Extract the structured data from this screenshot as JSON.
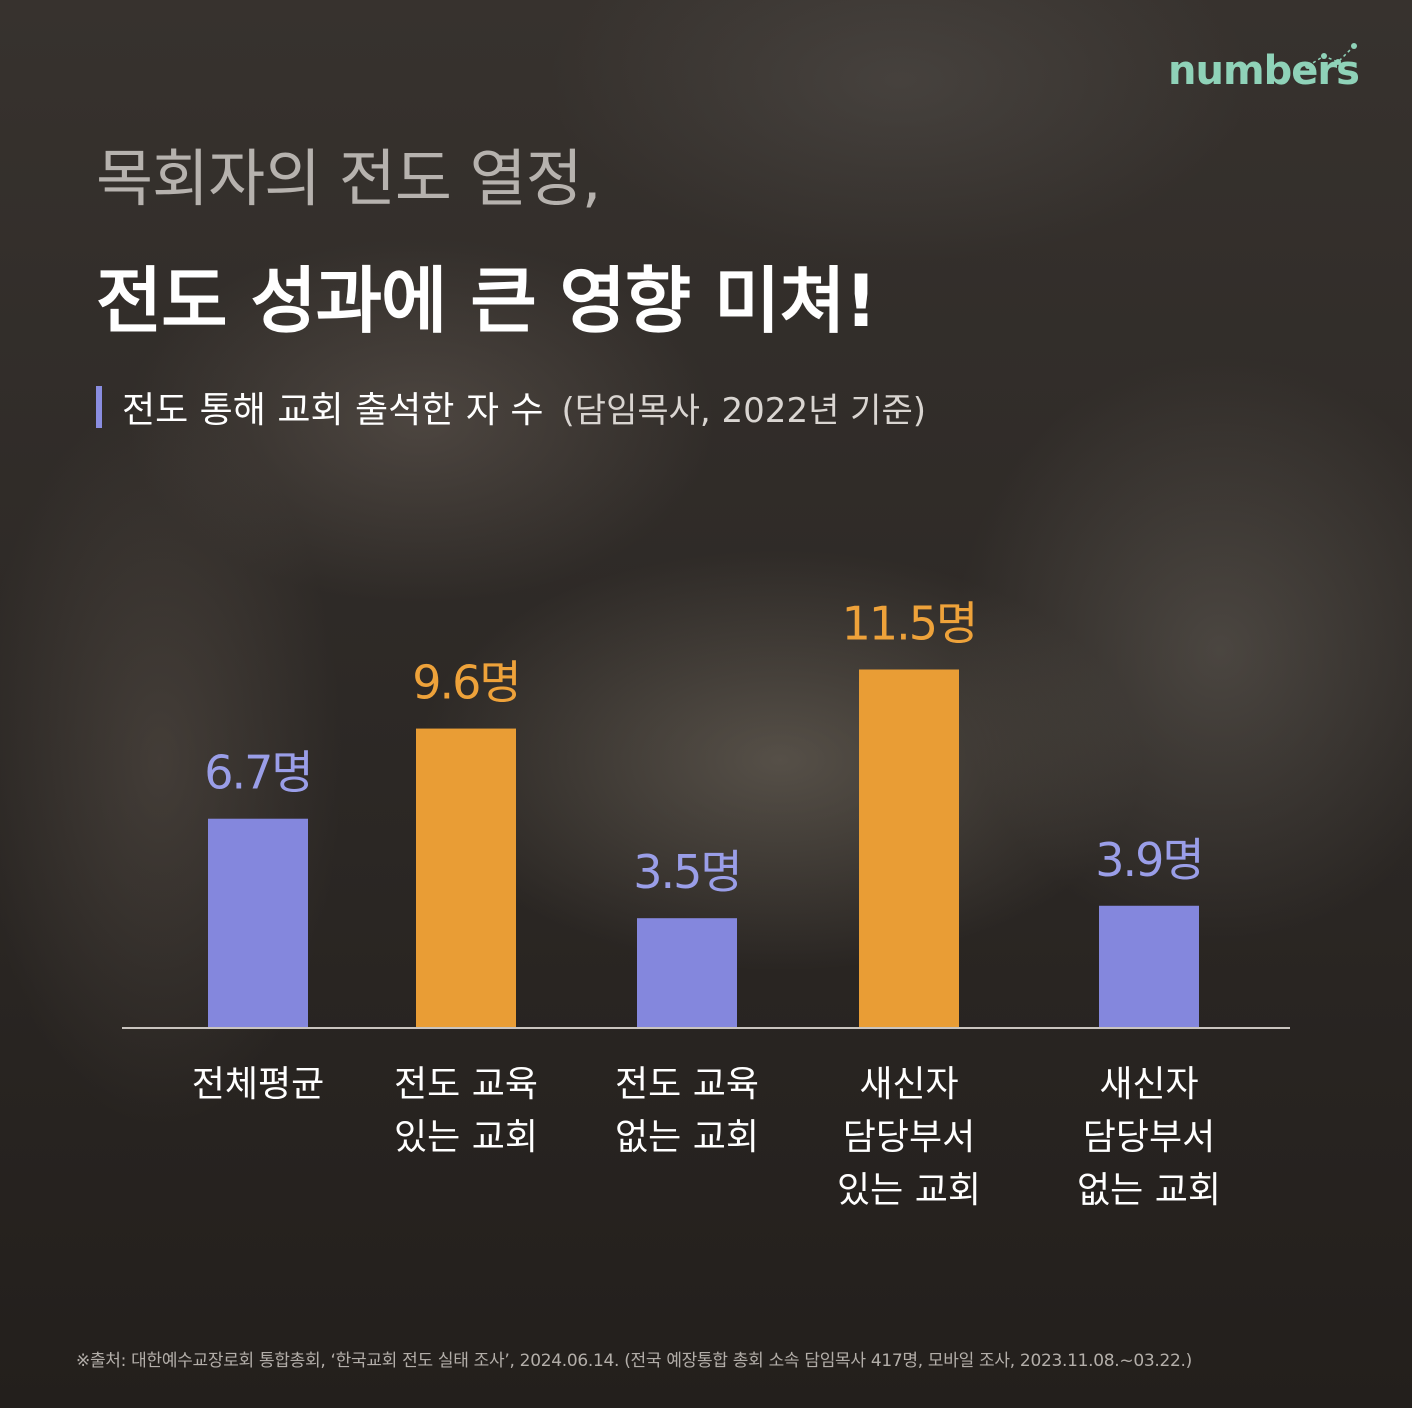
{
  "brand": {
    "name": "numbers"
  },
  "header": {
    "title_line1": "목회자의 전도 열정,",
    "title_line2": "전도 성과에 큰 영향 미쳐!",
    "subtitle": "전도 통해 교회 출석한 자 수",
    "subtitle_note": "(담임목사, 2022년 기준)"
  },
  "colors": {
    "series_blue": "#8487dd",
    "series_orange": "#e99d35",
    "blue_label": "#9a9ee8",
    "orange_label": "#eea23a"
  },
  "chart_data": {
    "type": "bar",
    "categories": [
      "전체평균",
      "전도 교육\n있는 교회",
      "전도 교육\n없는 교회",
      "새신자\n담당부서\n있는 교회",
      "새신자\n담당부서\n없는 교회"
    ],
    "values": [
      6.7,
      9.6,
      3.5,
      11.5,
      3.9
    ],
    "value_labels": [
      "6.7명",
      "9.6명",
      "3.5명",
      "11.5명",
      "3.9명"
    ],
    "bar_colors": [
      "blue",
      "orange",
      "blue",
      "orange",
      "blue"
    ],
    "ylim": [
      0,
      13.8
    ],
    "grid": false,
    "legend": "none"
  },
  "source": "※출처: 대한예수교장로회 통합총회, ‘한국교회 전도 실태 조사’, 2024.06.14. (전국 예장통합 총회 소속 담임목사 417명, 모바일 조사, 2023.11.08.~03.22.)"
}
